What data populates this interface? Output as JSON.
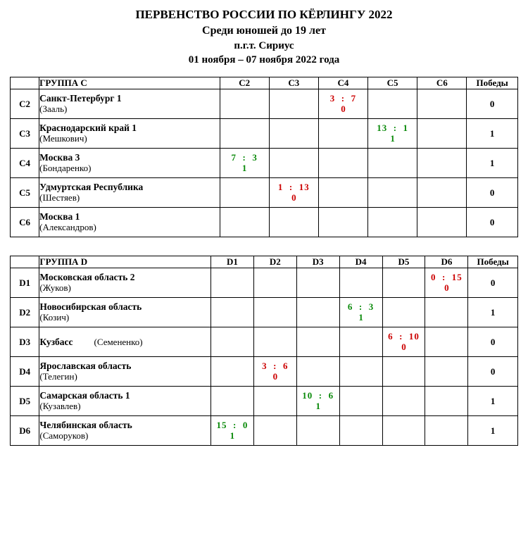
{
  "header": {
    "line1": "ПЕРВЕНСТВО РОССИИ ПО КЁРЛИНГУ 2022",
    "line2": "Среди юношей до 19 лет",
    "line3": "п.г.т. Сириус",
    "line4": "01 ноября – 07 ноября 2022 года"
  },
  "wins_label": "Победы",
  "colors": {
    "win": "#0a8a0a",
    "loss": "#cc0000",
    "border": "#000000",
    "hatch": "#bfbfbf",
    "background": "#ffffff"
  },
  "groupC": {
    "name": "ГРУППА C",
    "cols": [
      "C2",
      "C3",
      "C4",
      "C5",
      "C6"
    ],
    "rows": [
      {
        "code": "C2",
        "team": "Санкт-Петербург 1",
        "coach": "(Зааль)",
        "wins": "0",
        "cells": [
          {
            "diag": true
          },
          {
            "blank": true
          },
          {
            "s1": "3",
            "s2": "7",
            "pts": "0",
            "res": "loss"
          },
          {
            "blank": true
          },
          {
            "blank": true
          }
        ]
      },
      {
        "code": "C3",
        "team": "Краснодарский край 1",
        "coach": "(Мешкович)",
        "wins": "1",
        "cells": [
          {
            "blank": true
          },
          {
            "diag": true
          },
          {
            "blank": true
          },
          {
            "s1": "13",
            "s2": "1",
            "pts": "1",
            "res": "win"
          },
          {
            "blank": true
          }
        ]
      },
      {
        "code": "C4",
        "team": "Москва 3",
        "coach": "(Бондаренко)",
        "wins": "1",
        "cells": [
          {
            "s1": "7",
            "s2": "3",
            "pts": "1",
            "res": "win"
          },
          {
            "blank": true
          },
          {
            "diag": true
          },
          {
            "blank": true
          },
          {
            "blank": true
          }
        ]
      },
      {
        "code": "C5",
        "team": "Удмуртская Республика",
        "coach": "(Шестяев)",
        "wins": "0",
        "cells": [
          {
            "blank": true
          },
          {
            "s1": "1",
            "s2": "13",
            "pts": "0",
            "res": "loss"
          },
          {
            "blank": true
          },
          {
            "diag": true
          },
          {
            "blank": true
          }
        ]
      },
      {
        "code": "C6",
        "team": "Москва 1",
        "coach": "(Александров)",
        "wins": "0",
        "cells": [
          {
            "blank": true
          },
          {
            "blank": true
          },
          {
            "blank": true
          },
          {
            "blank": true
          },
          {
            "diag": true
          }
        ]
      }
    ]
  },
  "groupD": {
    "name": "ГРУППА D",
    "cols": [
      "D1",
      "D2",
      "D3",
      "D4",
      "D5",
      "D6"
    ],
    "rows": [
      {
        "code": "D1",
        "team": "Московская область 2",
        "coach": "(Жуков)",
        "wins": "0",
        "cells": [
          {
            "diag": true
          },
          {
            "blank": true
          },
          {
            "blank": true
          },
          {
            "blank": true
          },
          {
            "blank": true
          },
          {
            "s1": "0",
            "s2": "15",
            "pts": "0",
            "res": "loss"
          }
        ]
      },
      {
        "code": "D2",
        "team": "Новосибирская область",
        "coach": "(Козич)",
        "wins": "1",
        "cells": [
          {
            "blank": true
          },
          {
            "diag": true
          },
          {
            "blank": true
          },
          {
            "s1": "6",
            "s2": "3",
            "pts": "1",
            "res": "win"
          },
          {
            "blank": true
          },
          {
            "blank": true
          }
        ]
      },
      {
        "code": "D3",
        "team": "Кузбасс",
        "coach": "(Семененко)",
        "wins": "0",
        "inline": true,
        "cells": [
          {
            "blank": true
          },
          {
            "blank": true
          },
          {
            "diag": true
          },
          {
            "blank": true
          },
          {
            "s1": "6",
            "s2": "10",
            "pts": "0",
            "res": "loss"
          },
          {
            "blank": true
          }
        ]
      },
      {
        "code": "D4",
        "team": "Ярославская область",
        "coach": "(Телегин)",
        "wins": "0",
        "cells": [
          {
            "blank": true
          },
          {
            "s1": "3",
            "s2": "6",
            "pts": "0",
            "res": "loss"
          },
          {
            "blank": true
          },
          {
            "diag": true
          },
          {
            "blank": true
          },
          {
            "blank": true
          }
        ]
      },
      {
        "code": "D5",
        "team": "Самарская область 1",
        "coach": "(Кузавлев)",
        "wins": "1",
        "cells": [
          {
            "blank": true
          },
          {
            "blank": true
          },
          {
            "s1": "10",
            "s2": "6",
            "pts": "1",
            "res": "win"
          },
          {
            "blank": true
          },
          {
            "diag": true
          },
          {
            "blank": true
          }
        ]
      },
      {
        "code": "D6",
        "team": "Челябинская область",
        "coach": "(Саморуков)",
        "wins": "1",
        "cells": [
          {
            "s1": "15",
            "s2": "0",
            "pts": "1",
            "res": "win"
          },
          {
            "blank": true
          },
          {
            "blank": true
          },
          {
            "blank": true
          },
          {
            "blank": true
          },
          {
            "diag": true
          }
        ]
      }
    ]
  }
}
